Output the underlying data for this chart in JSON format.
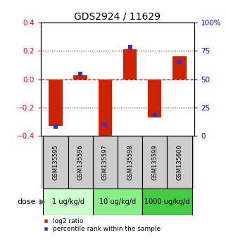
{
  "title": "GDS2924 / 11629",
  "samples": [
    "GSM135595",
    "GSM135596",
    "GSM135597",
    "GSM135598",
    "GSM135599",
    "GSM135600"
  ],
  "log2_ratios": [
    -0.33,
    0.03,
    -0.41,
    0.21,
    -0.27,
    0.16
  ],
  "percentile_ranks": [
    8,
    55,
    10,
    78,
    18,
    65
  ],
  "ylim_left": [
    -0.4,
    0.4
  ],
  "ylim_right": [
    0,
    100
  ],
  "yticks_left": [
    -0.4,
    -0.2,
    0.0,
    0.2,
    0.4
  ],
  "yticks_right": [
    0,
    25,
    50,
    75,
    100
  ],
  "ytick_labels_right": [
    "0",
    "25",
    "50",
    "75",
    "100%"
  ],
  "red_bar_color": "#cc2200",
  "blue_sq_color": "#3333cc",
  "dose_groups": [
    {
      "label": "1 ug/kg/d",
      "indices": [
        0,
        1
      ],
      "color": "#ccffcc"
    },
    {
      "label": "10 ug/kg/d",
      "indices": [
        2,
        3
      ],
      "color": "#88ee88"
    },
    {
      "label": "1000 ug/kg/d",
      "indices": [
        4,
        5
      ],
      "color": "#44cc44"
    }
  ],
  "dose_label": "dose",
  "legend_red": "log2 ratio",
  "legend_blue": "percentile rank within the sample",
  "zero_line_color": "#cc0000",
  "background_plot": "#ffffff",
  "background_sample": "#cccccc",
  "title_fontsize": 10,
  "bar_width": 0.55
}
